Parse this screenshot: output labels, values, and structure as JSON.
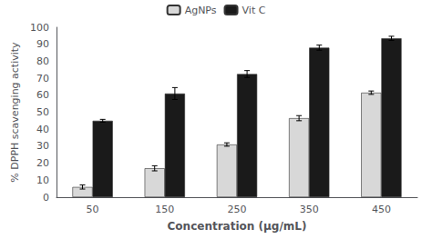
{
  "chart_data": {
    "type": "bar",
    "xlabel": "Concentration (μg/mL)",
    "ylabel": "% DPPH scavenging activity",
    "categories": [
      "50",
      "150",
      "250",
      "350",
      "450"
    ],
    "series": [
      {
        "name": "AgNPs",
        "color": "#d8d8d8",
        "values": [
          6,
          17,
          31,
          46.5,
          61.5
        ],
        "errors": [
          1.2,
          1.5,
          1.0,
          1.5,
          1.0
        ]
      },
      {
        "name": "Vit C",
        "color": "#1a1a1a",
        "values": [
          45,
          61,
          72.5,
          88,
          93.5
        ],
        "errors": [
          0.8,
          3.5,
          2.0,
          1.5,
          1.2
        ]
      }
    ],
    "ylim": [
      0,
      100
    ],
    "yticks": [
      0,
      10,
      20,
      30,
      40,
      50,
      60,
      70,
      80,
      90,
      100
    ],
    "grid": false,
    "legend": "top"
  }
}
